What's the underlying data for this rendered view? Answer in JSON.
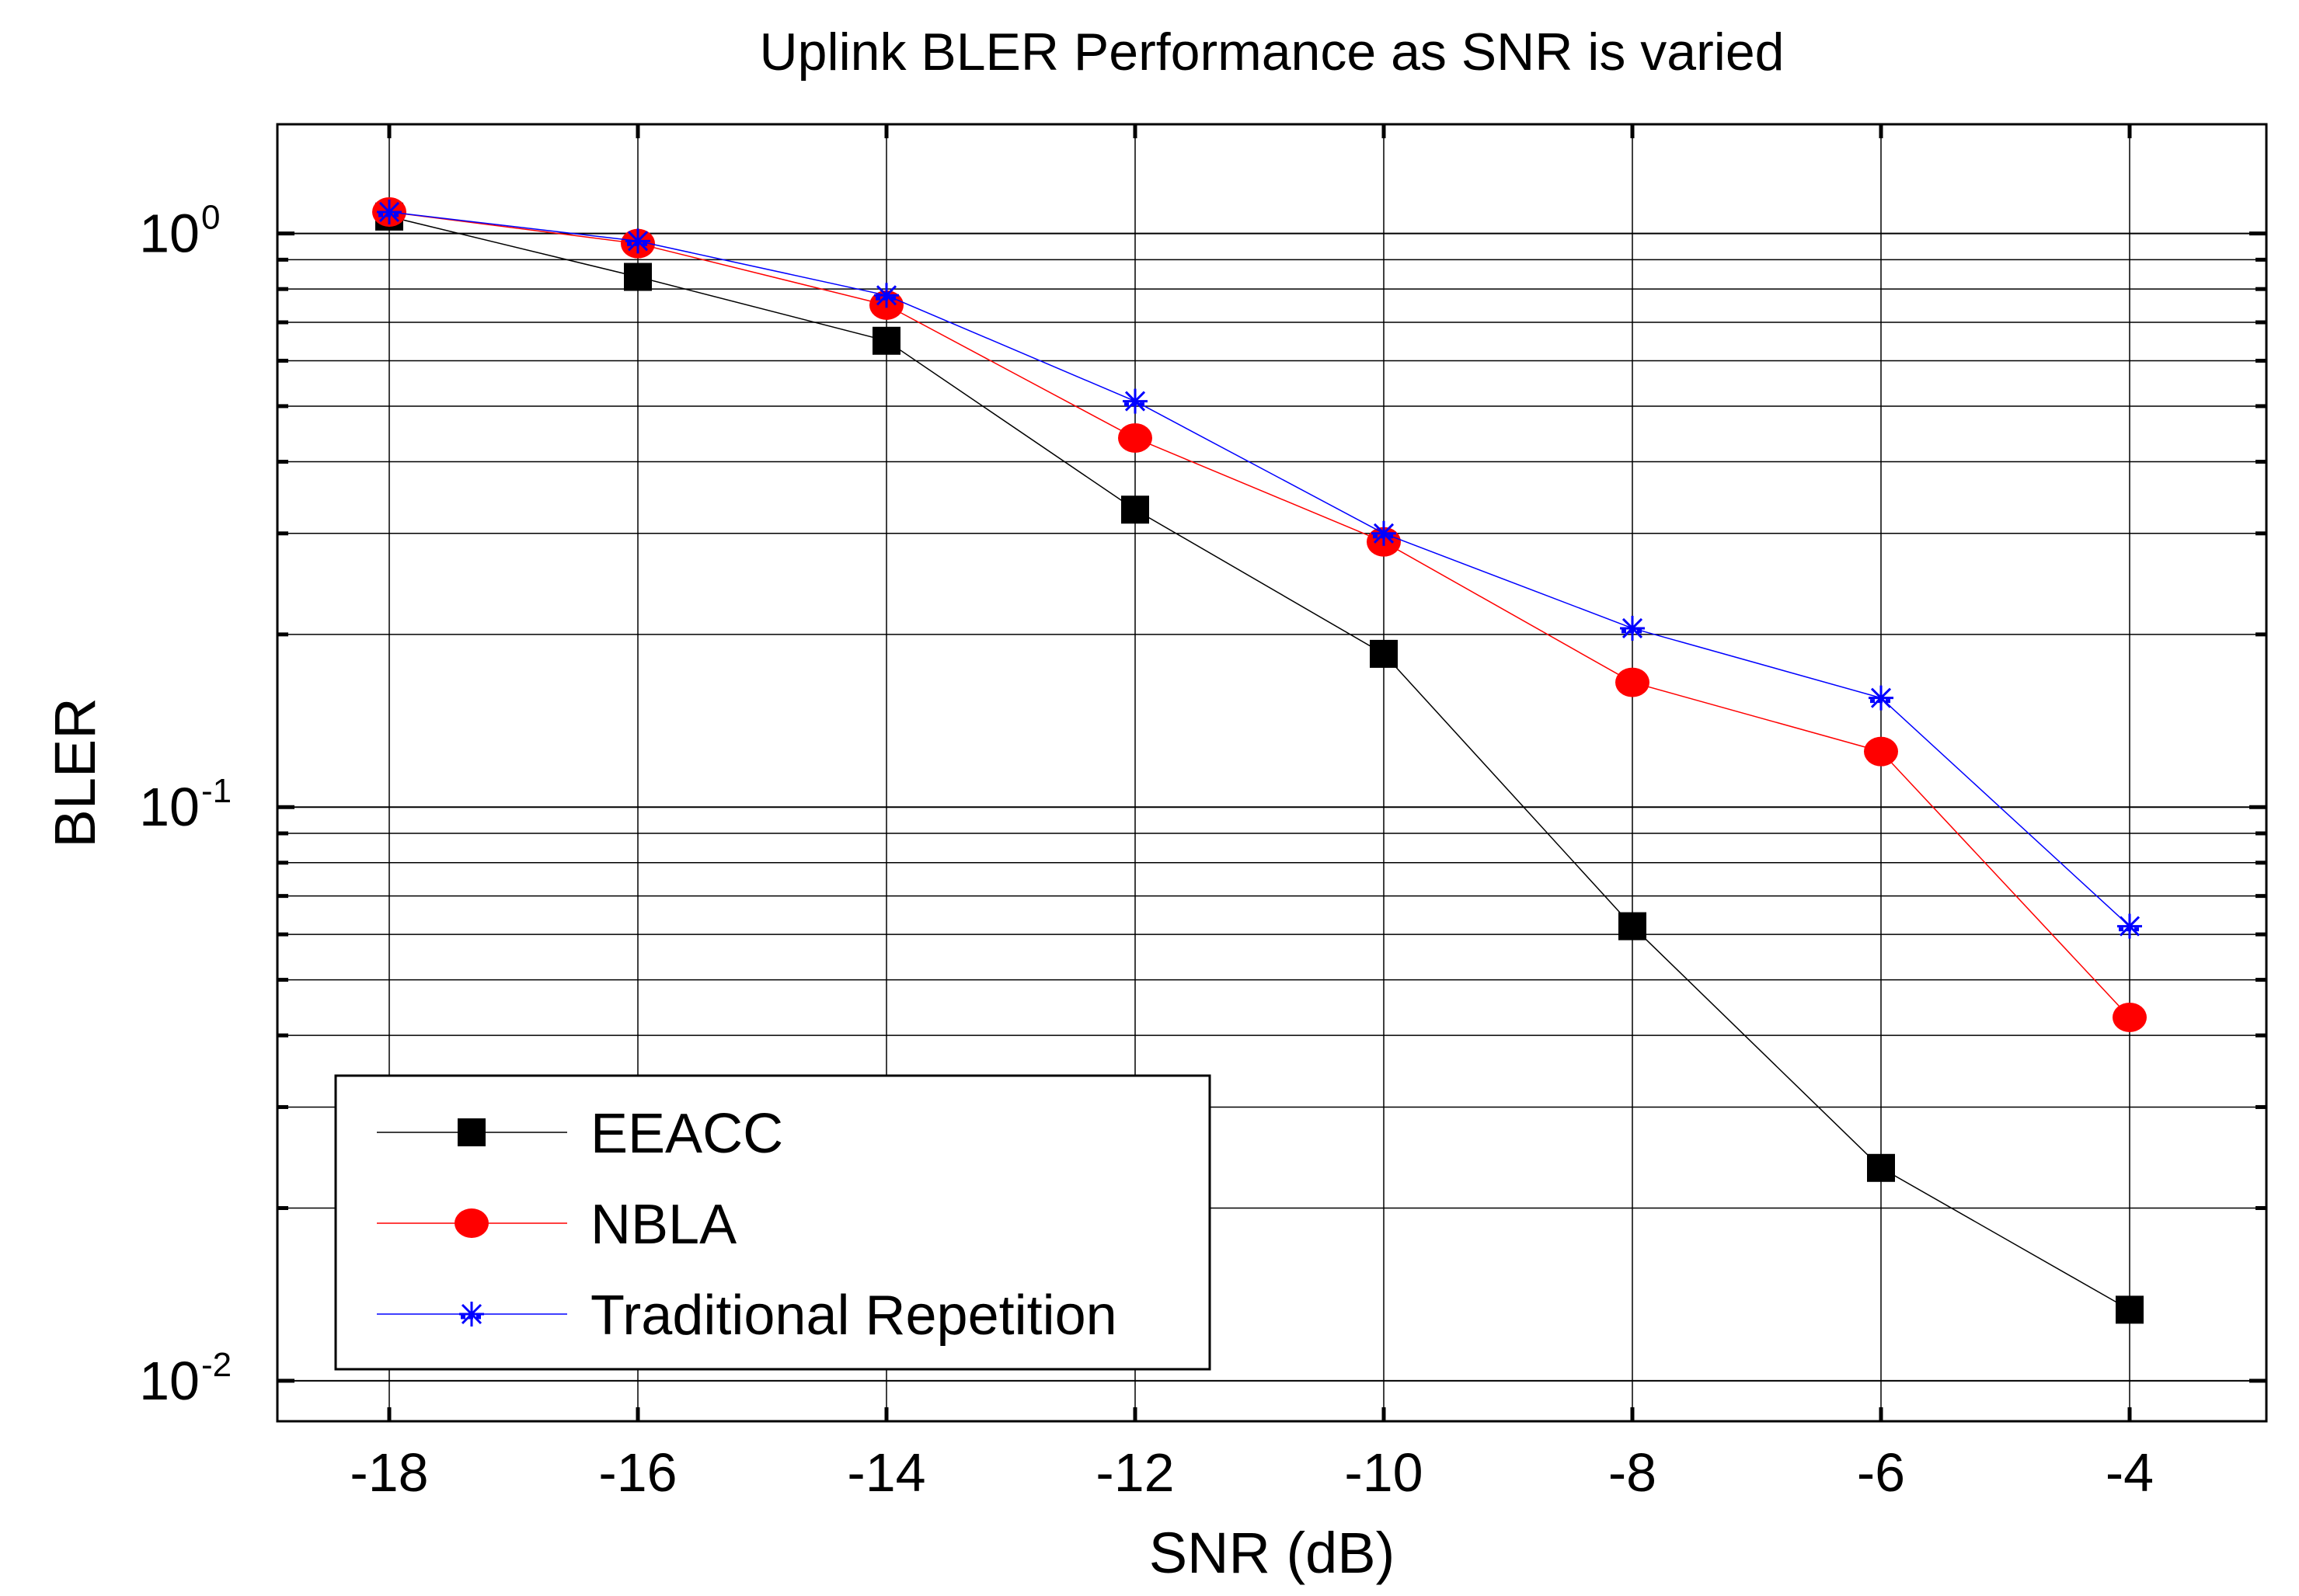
{
  "chart_data": {
    "type": "line",
    "title": "Uplink BLER Performance as SNR is varied",
    "xlabel": "SNR (dB)",
    "ylabel": "BLER",
    "xlim": [
      -18.9,
      -2.9
    ],
    "ylim": [
      0.0085,
      1.55
    ],
    "yscale": "log",
    "grid": true,
    "legend_position": "bottom-left",
    "x": [
      -18,
      -16,
      -14,
      -12,
      -10,
      -8,
      -6,
      -4
    ],
    "x_tick_labels": [
      "-18",
      "-16",
      "-14",
      "-12",
      "-10",
      "-8",
      "-6",
      "-4"
    ],
    "y_ticks": [
      {
        "value": 1,
        "base": "10",
        "exp": "0"
      },
      {
        "value": 0.1,
        "base": "10",
        "exp": "-1"
      },
      {
        "value": 0.01,
        "base": "10",
        "exp": "-2"
      }
    ],
    "series": [
      {
        "name": "EEACC",
        "color": "#000000",
        "marker": "square",
        "values": [
          1.07,
          0.84,
          0.65,
          0.33,
          0.185,
          0.062,
          0.0235,
          0.0133
        ]
      },
      {
        "name": "NBLA",
        "color": "#ff0000",
        "marker": "circle",
        "values": [
          1.09,
          0.96,
          0.75,
          0.44,
          0.29,
          0.165,
          0.125,
          0.043
        ]
      },
      {
        "name": "Traditional Repetition",
        "color": "#0000ff",
        "marker": "star",
        "values": [
          1.09,
          0.97,
          0.78,
          0.51,
          0.3,
          0.205,
          0.155,
          0.062
        ]
      }
    ]
  }
}
